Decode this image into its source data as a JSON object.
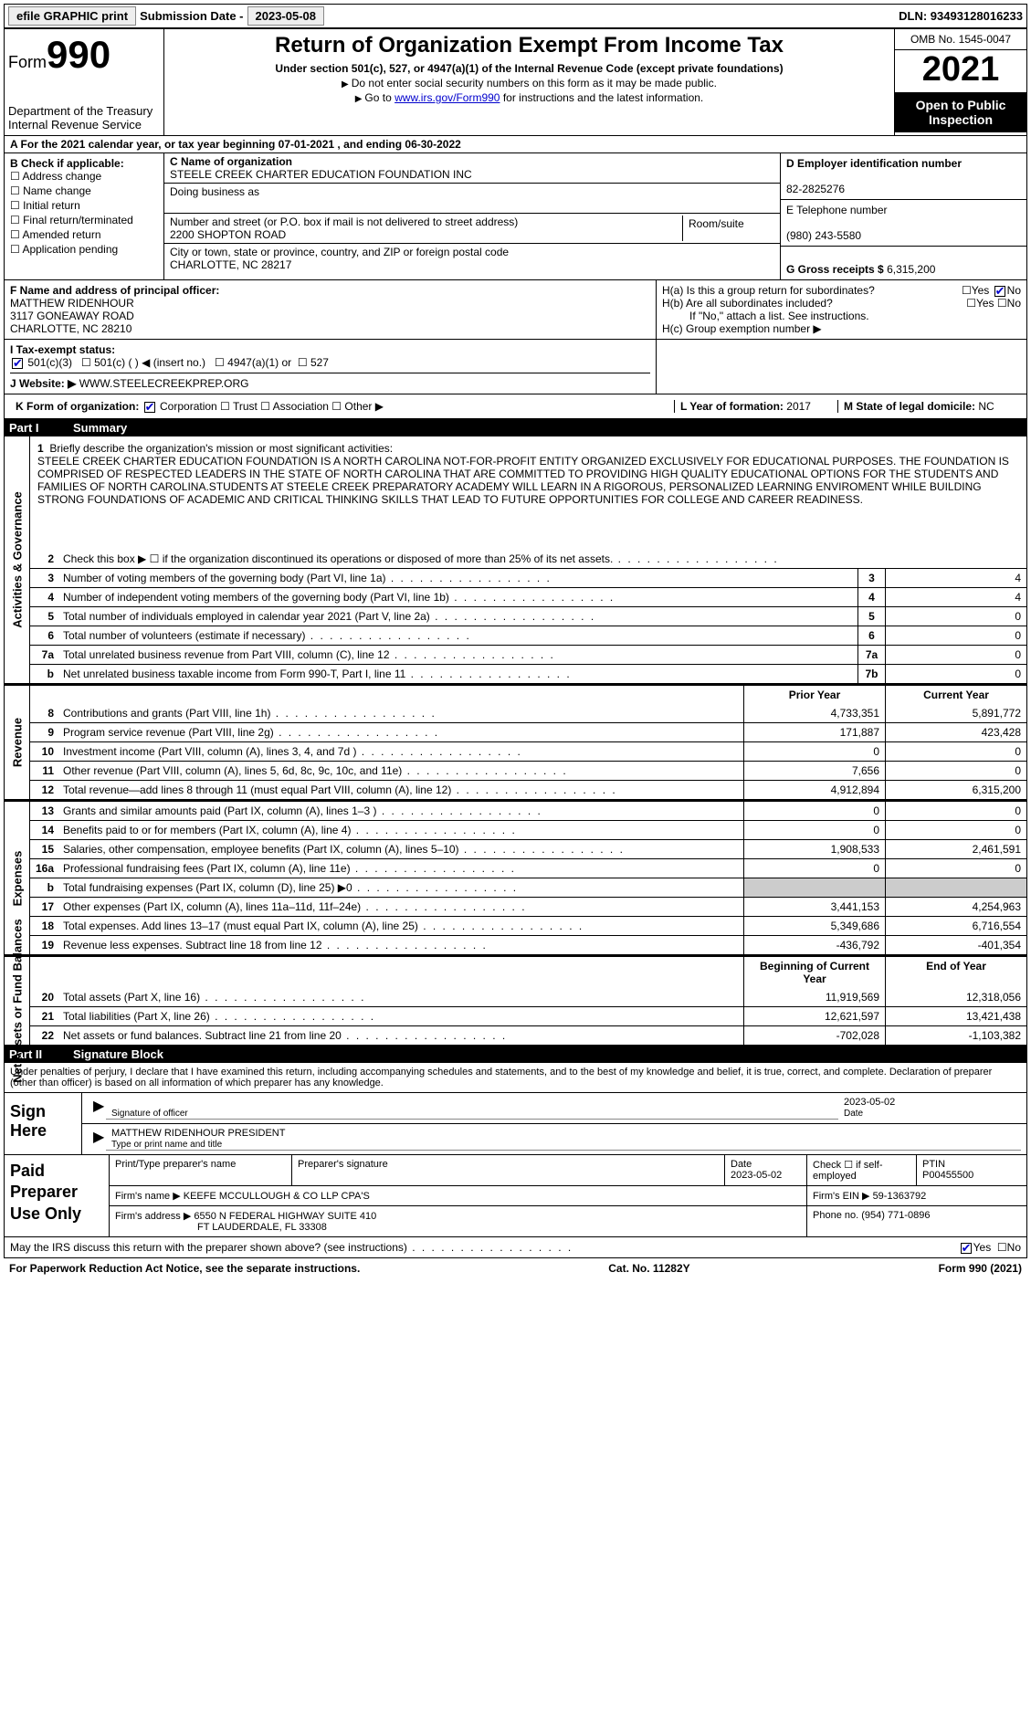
{
  "topbar": {
    "efile": "efile GRAPHIC print",
    "sub_label": "Submission Date -",
    "sub_date": "2023-05-08",
    "dln": "DLN: 93493128016233"
  },
  "header": {
    "form_prefix": "Form",
    "form_num": "990",
    "dept": "Department of the Treasury",
    "irs": "Internal Revenue Service",
    "title": "Return of Organization Exempt From Income Tax",
    "sub1": "Under section 501(c), 527, or 4947(a)(1) of the Internal Revenue Code (except private foundations)",
    "sub2": "Do not enter social security numbers on this form as it may be made public.",
    "sub3a": "Go to ",
    "sub3_link": "www.irs.gov/Form990",
    "sub3b": " for instructions and the latest information.",
    "omb": "OMB No. 1545-0047",
    "year": "2021",
    "open": "Open to Public Inspection"
  },
  "row_a": {
    "text_a": "A For the 2021 calendar year, or tax year beginning ",
    "begin": "07-01-2021",
    "mid": " , and ending ",
    "end": "06-30-2022"
  },
  "col_b": {
    "hdr": "B Check if applicable:",
    "opts": [
      "Address change",
      "Name change",
      "Initial return",
      "Final return/terminated",
      "Amended return",
      "Application pending"
    ]
  },
  "col_c": {
    "c_label": "C Name of organization",
    "org": "STEELE CREEK CHARTER EDUCATION FOUNDATION INC",
    "dba_label": "Doing business as",
    "dba": "",
    "addr_label": "Number and street (or P.O. box if mail is not delivered to street address)",
    "room_label": "Room/suite",
    "addr": "2200 SHOPTON ROAD",
    "city_label": "City or town, state or province, country, and ZIP or foreign postal code",
    "city": "CHARLOTTE, NC  28217"
  },
  "col_d": {
    "d_label": "D Employer identification number",
    "ein": "82-2825276",
    "e_label": "E Telephone number",
    "phone": "(980) 243-5580",
    "g_label": "G Gross receipts $",
    "gross": "6,315,200"
  },
  "row_f": {
    "f_label": "F  Name and address of principal officer:",
    "name": "MATTHEW RIDENHOUR",
    "addr": "3117 GONEAWAY ROAD",
    "city": "CHARLOTTE, NC  28210",
    "ha": "H(a)  Is this a group return for subordinates?",
    "hb": "H(b)  Are all subordinates included?",
    "hnote": "If \"No,\" attach a list. See instructions.",
    "hc": "H(c)  Group exemption number ▶",
    "yes": "Yes",
    "no": "No"
  },
  "row_i": {
    "label": "I   Tax-exempt status:",
    "o1": "501(c)(3)",
    "o2": "501(c) (  ) ◀ (insert no.)",
    "o3": "4947(a)(1) or",
    "o4": "527"
  },
  "row_j": {
    "label": "J   Website: ▶",
    "val": "WWW.STEELECREEKPREP.ORG"
  },
  "row_k": {
    "k_label": "K Form of organization:",
    "corp": "Corporation",
    "trust": "Trust",
    "assoc": "Association",
    "other": "Other ▶",
    "l_label": "L Year of formation:",
    "l_val": "2017",
    "m_label": "M State of legal domicile:",
    "m_val": "NC"
  },
  "part1": {
    "num": "Part I",
    "title": "Summary"
  },
  "mission": {
    "num": "1",
    "label": "Briefly describe the organization's mission or most significant activities:",
    "text": "STEELE CREEK CHARTER EDUCATION FOUNDATION IS A NORTH CAROLINA NOT-FOR-PROFIT ENTITY ORGANIZED EXCLUSIVELY FOR EDUCATIONAL PURPOSES. THE FOUNDATION IS COMPRISED OF RESPECTED LEADERS IN THE STATE OF NORTH CAROLINA THAT ARE COMMITTED TO PROVIDING HIGH QUALITY EDUCATIONAL OPTIONS FOR THE STUDENTS AND FAMILIES OF NORTH CAROLINA.STUDENTS AT STEELE CREEK PREPARATORY ACADEMY WILL LEARN IN A RIGOROUS, PERSONALIZED LEARNING ENVIROMENT WHILE BUILDING STRONG FOUNDATIONS OF ACADEMIC AND CRITICAL THINKING SKILLS THAT LEAD TO FUTURE OPPORTUNITIES FOR COLLEGE AND CAREER READINESS."
  },
  "gov_lines": [
    {
      "num": "2",
      "desc": "Check this box ▶ ☐ if the organization discontinued its operations or disposed of more than 25% of its net assets.",
      "box": "",
      "val": ""
    },
    {
      "num": "3",
      "desc": "Number of voting members of the governing body (Part VI, line 1a)",
      "box": "3",
      "val": "4"
    },
    {
      "num": "4",
      "desc": "Number of independent voting members of the governing body (Part VI, line 1b)",
      "box": "4",
      "val": "4"
    },
    {
      "num": "5",
      "desc": "Total number of individuals employed in calendar year 2021 (Part V, line 2a)",
      "box": "5",
      "val": "0"
    },
    {
      "num": "6",
      "desc": "Total number of volunteers (estimate if necessary)",
      "box": "6",
      "val": "0"
    },
    {
      "num": "7a",
      "desc": "Total unrelated business revenue from Part VIII, column (C), line 12",
      "box": "7a",
      "val": "0"
    },
    {
      "num": "b",
      "desc": "Net unrelated business taxable income from Form 990-T, Part I, line 11",
      "box": "7b",
      "val": "0"
    }
  ],
  "col_hdrs": {
    "prior": "Prior Year",
    "current": "Current Year"
  },
  "rev_lines": [
    {
      "num": "8",
      "desc": "Contributions and grants (Part VIII, line 1h)",
      "prior": "4,733,351",
      "cur": "5,891,772"
    },
    {
      "num": "9",
      "desc": "Program service revenue (Part VIII, line 2g)",
      "prior": "171,887",
      "cur": "423,428"
    },
    {
      "num": "10",
      "desc": "Investment income (Part VIII, column (A), lines 3, 4, and 7d )",
      "prior": "0",
      "cur": "0"
    },
    {
      "num": "11",
      "desc": "Other revenue (Part VIII, column (A), lines 5, 6d, 8c, 9c, 10c, and 11e)",
      "prior": "7,656",
      "cur": "0"
    },
    {
      "num": "12",
      "desc": "Total revenue—add lines 8 through 11 (must equal Part VIII, column (A), line 12)",
      "prior": "4,912,894",
      "cur": "6,315,200"
    }
  ],
  "exp_lines": [
    {
      "num": "13",
      "desc": "Grants and similar amounts paid (Part IX, column (A), lines 1–3 )",
      "prior": "0",
      "cur": "0"
    },
    {
      "num": "14",
      "desc": "Benefits paid to or for members (Part IX, column (A), line 4)",
      "prior": "0",
      "cur": "0"
    },
    {
      "num": "15",
      "desc": "Salaries, other compensation, employee benefits (Part IX, column (A), lines 5–10)",
      "prior": "1,908,533",
      "cur": "2,461,591"
    },
    {
      "num": "16a",
      "desc": "Professional fundraising fees (Part IX, column (A), line 11e)",
      "prior": "0",
      "cur": "0"
    },
    {
      "num": "b",
      "desc": "Total fundraising expenses (Part IX, column (D), line 25) ▶0",
      "prior": "",
      "cur": "",
      "shaded": true
    },
    {
      "num": "17",
      "desc": "Other expenses (Part IX, column (A), lines 11a–11d, 11f–24e)",
      "prior": "3,441,153",
      "cur": "4,254,963"
    },
    {
      "num": "18",
      "desc": "Total expenses. Add lines 13–17 (must equal Part IX, column (A), line 25)",
      "prior": "5,349,686",
      "cur": "6,716,554"
    },
    {
      "num": "19",
      "desc": "Revenue less expenses. Subtract line 18 from line 12",
      "prior": "-436,792",
      "cur": "-401,354"
    }
  ],
  "na_hdrs": {
    "begin": "Beginning of Current Year",
    "end": "End of Year"
  },
  "na_lines": [
    {
      "num": "20",
      "desc": "Total assets (Part X, line 16)",
      "prior": "11,919,569",
      "cur": "12,318,056"
    },
    {
      "num": "21",
      "desc": "Total liabilities (Part X, line 26)",
      "prior": "12,621,597",
      "cur": "13,421,438"
    },
    {
      "num": "22",
      "desc": "Net assets or fund balances. Subtract line 21 from line 20",
      "prior": "-702,028",
      "cur": "-1,103,382"
    }
  ],
  "part2": {
    "num": "Part II",
    "title": "Signature Block"
  },
  "sig": {
    "intro": "Under penalties of perjury, I declare that I have examined this return, including accompanying schedules and statements, and to the best of my knowledge and belief, it is true, correct, and complete. Declaration of preparer (other than officer) is based on all information of which preparer has any knowledge.",
    "sign_here": "Sign Here",
    "sig_of": "Signature of officer",
    "date_lbl": "Date",
    "date": "2023-05-02",
    "name": "MATTHEW RIDENHOUR  PRESIDENT",
    "type_lbl": "Type or print name and title"
  },
  "prep": {
    "label": "Paid Preparer Use Only",
    "h1": "Print/Type preparer's name",
    "h2": "Preparer's signature",
    "h3": "Date",
    "h4": "Check ☐ if self-employed",
    "h5": "PTIN",
    "date": "2023-05-02",
    "ptin": "P00455500",
    "firm_lbl": "Firm's name   ▶",
    "firm": "KEEFE MCCULLOUGH & CO LLP CPA'S",
    "ein_lbl": "Firm's EIN ▶",
    "ein": "59-1363792",
    "addr_lbl": "Firm's address ▶",
    "addr": "6550 N FEDERAL HIGHWAY SUITE 410",
    "city": "FT LAUDERDALE, FL  33308",
    "ph_lbl": "Phone no.",
    "ph": "(954) 771-0896"
  },
  "footer": {
    "may": "May the IRS discuss this return with the preparer shown above? (see instructions)",
    "yes": "Yes",
    "no": "No",
    "pra": "For Paperwork Reduction Act Notice, see the separate instructions.",
    "cat": "Cat. No. 11282Y",
    "form": "Form 990 (2021)"
  },
  "vtabs": {
    "gov": "Activities & Governance",
    "rev": "Revenue",
    "exp": "Expenses",
    "na": "Net Assets or Fund Balances"
  }
}
